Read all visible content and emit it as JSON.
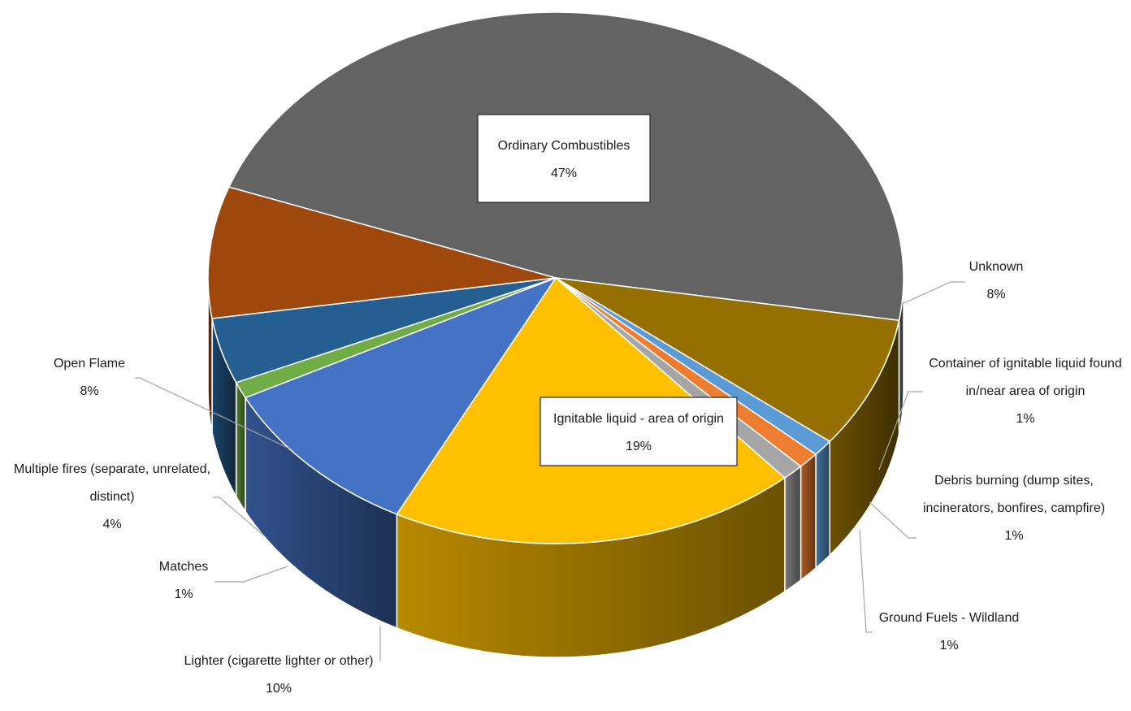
{
  "chart_data": {
    "type": "pie",
    "title": "",
    "legend": "none",
    "slices": [
      {
        "label": "Ordinary Combustibles",
        "value": 47,
        "pct": "47%",
        "color": "#636363"
      },
      {
        "label": "Unknown",
        "value": 8,
        "pct": "8%",
        "color": "#957000"
      },
      {
        "label": "Container of ignitable liquid found in/near area of origin",
        "label_lines": [
          "Container of ignitable liquid found",
          "in/near area of origin"
        ],
        "value": 1,
        "pct": "1%",
        "color": "#5b9bd5"
      },
      {
        "label": "Debris burning (dump sites, incinerators, bonfires, campfire)",
        "label_lines": [
          "Debris burning (dump sites,",
          "incinerators, bonfires, campfire)"
        ],
        "value": 1,
        "pct": "1%",
        "color": "#ed7d31"
      },
      {
        "label": "Ground Fuels - Wildland",
        "value": 1,
        "pct": "1%",
        "color": "#a5a5a5"
      },
      {
        "label": "Ignitable liquid - area of origin",
        "value": 19,
        "pct": "19%",
        "color": "#ffc000"
      },
      {
        "label": "Lighter (cigarette lighter or other)",
        "value": 10,
        "pct": "10%",
        "color": "#4472c4"
      },
      {
        "label": "Matches",
        "value": 1,
        "pct": "1%",
        "color": "#70ad47"
      },
      {
        "label": "Multiple fires (separate, unrelated, distinct)",
        "label_lines": [
          "Multiple fires (separate, unrelated,",
          "distinct)"
        ],
        "value": 4,
        "pct": "4%",
        "color": "#255e91"
      },
      {
        "label": "Open Flame",
        "value": 8,
        "pct": "8%",
        "color": "#9e480e"
      }
    ]
  }
}
